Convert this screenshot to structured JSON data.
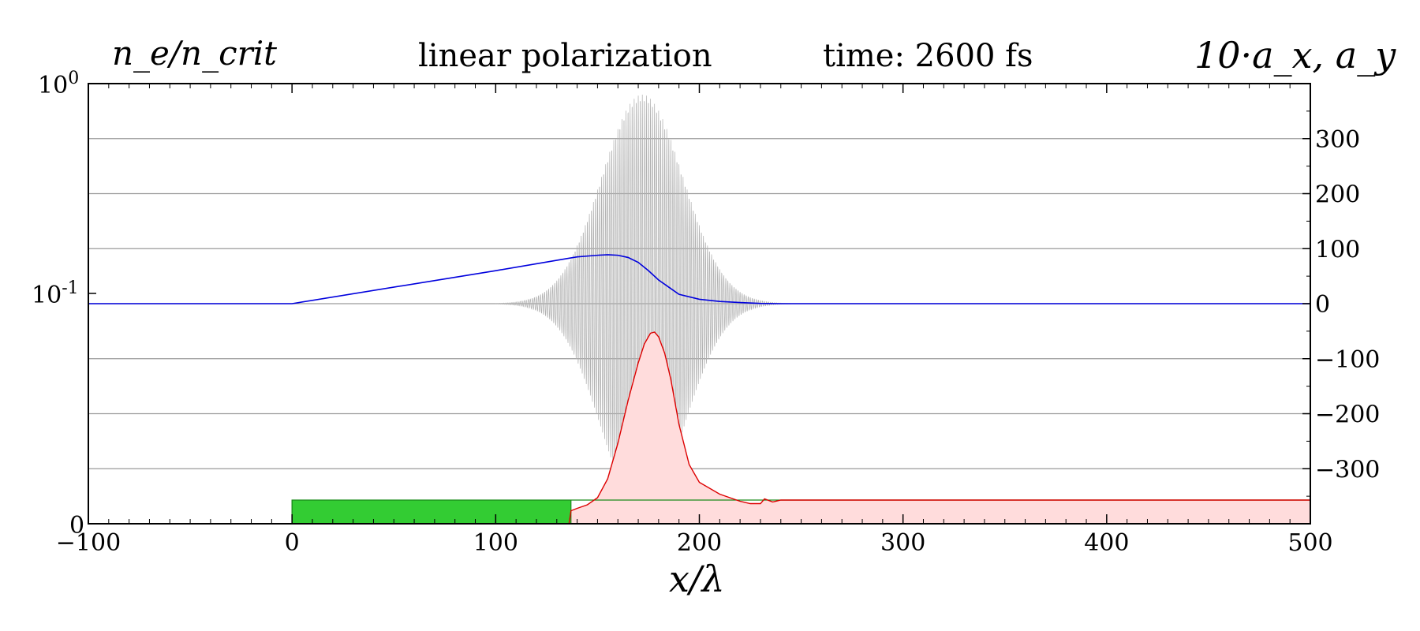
{
  "chart_data": {
    "type": "line",
    "title_left": "n_e/n_crit",
    "title_center": "linear polarization",
    "title_time": "time: 2600 fs",
    "title_right": "10·a_x, a_y",
    "xlabel": "x/λ",
    "xlim": [
      -100,
      500
    ],
    "x_ticks": [
      "−100",
      "0",
      "100",
      "200",
      "300",
      "400",
      "500"
    ],
    "left_axis": {
      "scale": "log",
      "ticks": [
        {
          "label": "10",
          "exp": "0"
        },
        {
          "label": "10",
          "exp": "-1"
        },
        {
          "label": "0",
          "exp": ""
        }
      ]
    },
    "right_axis": {
      "ylim": [
        -400,
        400
      ],
      "ticks": [
        "300",
        "200",
        "100",
        "0",
        "−100",
        "−200",
        "−300"
      ]
    },
    "grid": true,
    "colors": {
      "ion_density": "#33cc33",
      "electron_density": "#dd0000",
      "electron_fill": "#ffdcdc",
      "laser_envelope": "#0000dd",
      "laser_field": "#b0b0b0",
      "grid": "#9a9a9a"
    },
    "series": [
      {
        "role": "ion_density",
        "x": [
          -100,
          0,
          0,
          500
        ],
        "level": [
          0.0,
          0.0,
          1.0,
          1.0
        ]
      },
      {
        "role": "electron_density",
        "x": [
          -100,
          136,
          137,
          140,
          145,
          150,
          155,
          160,
          165,
          170,
          173,
          176,
          178,
          180,
          183,
          186,
          190,
          195,
          200,
          210,
          220,
          225,
          230,
          232,
          236,
          240,
          250,
          300,
          400,
          500
        ],
        "level": [
          0.0,
          0.0,
          0.55,
          0.65,
          0.8,
          1.1,
          1.9,
          3.4,
          5.2,
          6.8,
          7.6,
          8.05,
          8.1,
          7.9,
          7.2,
          6.1,
          4.2,
          2.5,
          1.75,
          1.25,
          0.95,
          0.85,
          0.85,
          1.05,
          0.92,
          1.0,
          1.0,
          1.0,
          1.0,
          1.0
        ]
      },
      {
        "role": "laser_envelope",
        "x": [
          -100,
          0,
          100,
          135,
          140,
          150,
          155,
          160,
          165,
          170,
          175,
          180,
          185,
          190,
          200,
          210,
          220,
          230,
          240,
          300,
          400,
          500
        ],
        "y": [
          0,
          0,
          60,
          82,
          85,
          88,
          89,
          88,
          84,
          75,
          60,
          43,
          30,
          17,
          8,
          4,
          2,
          0.5,
          0,
          0,
          0,
          0
        ]
      },
      {
        "role": "laser_field",
        "center": 172,
        "amplitude": 380,
        "sigma": 20,
        "x_start": 100,
        "x_end": 245,
        "period": 1
      }
    ]
  }
}
